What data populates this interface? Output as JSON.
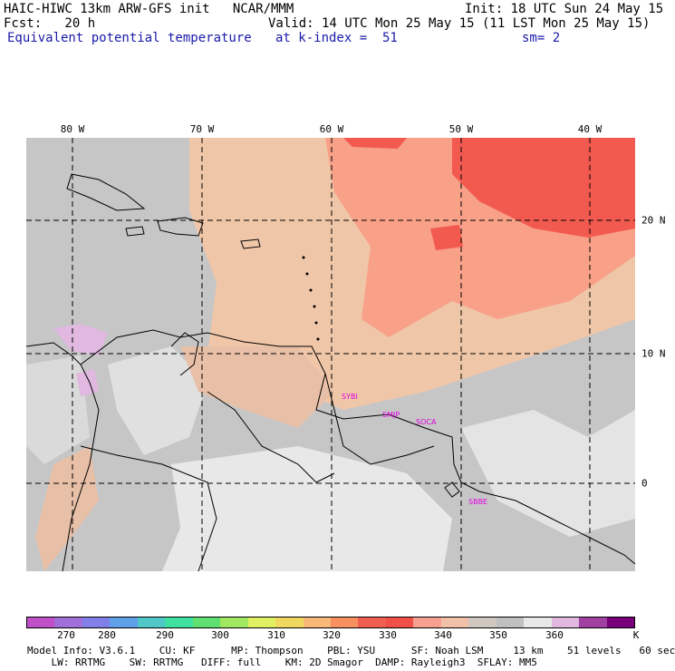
{
  "header": {
    "line1_left": "HAIC-HIWC 13km ARW-GFS init   NCAR/MMM",
    "line1_right": "Init: 18 UTC Sun 24 May 15",
    "line2_left": "Fcst:   20 h",
    "line2_right": "Valid: 14 UTC Mon 25 May 15 (11 LST Mon 25 May 15)",
    "line3_left": "Equivalent potential temperature",
    "line3_mid": "at k-index =  51",
    "line3_right": "sm= 2"
  },
  "lon_labels": [
    "80 W",
    "70 W",
    "60 W",
    "50 W",
    "40 W"
  ],
  "lat_labels": [
    "20 N",
    "10 N",
    "0"
  ],
  "stations": [
    "SYBI",
    "SMJP",
    "SOCA",
    "SBBE"
  ],
  "colorbar": {
    "colors": [
      "#c050c8",
      "#a070d8",
      "#8080e8",
      "#60a0e8",
      "#50c8c8",
      "#40e0a0",
      "#60e070",
      "#a0e860",
      "#e0f060",
      "#f0d860",
      "#f8b878",
      "#f89060",
      "#f06050",
      "#f05048",
      "#f8a090",
      "#f0c0a8",
      "#d0c8c0",
      "#c0c0c0",
      "#e8e8e8",
      "#e0b8e0",
      "#a040a0",
      "#780078"
    ],
    "ticks": [
      "270",
      "280",
      "290",
      "300",
      "310",
      "320",
      "330",
      "340",
      "350",
      "360"
    ],
    "unit": "K"
  },
  "footer": {
    "line1": "Model Info: V3.6.1    CU: KF      MP: Thompson    PBL: YSU      SF: Noah LSM     13 km    51 levels   60 sec",
    "line2": "    LW: RRTMG    SW: RRTMG   DIFF: full    KM: 2D Smagor  DAMP: Rayleigh3  SFLAY: MM5"
  }
}
